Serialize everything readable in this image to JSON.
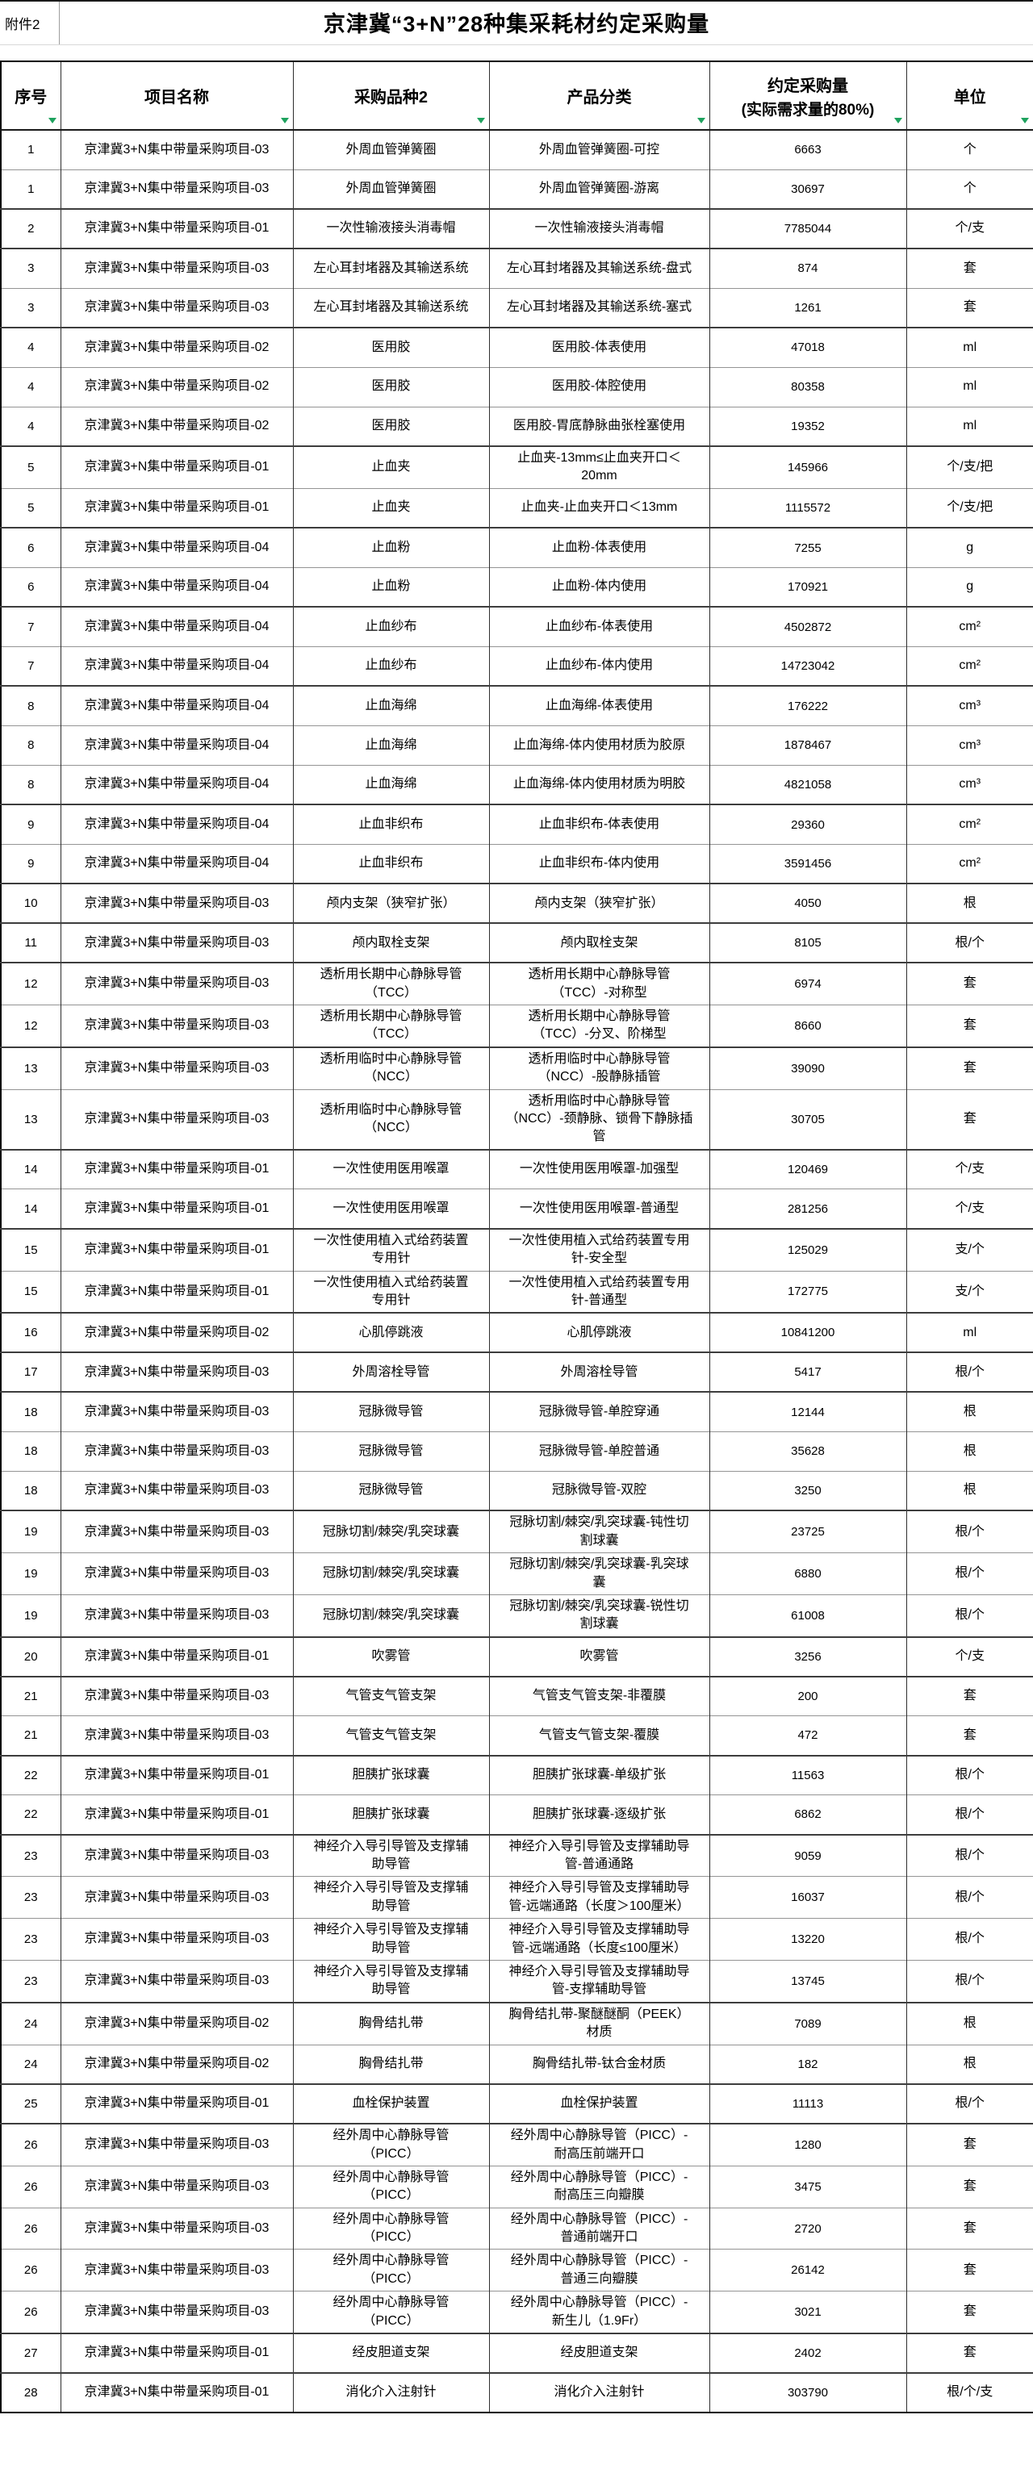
{
  "attachment": "附件2",
  "title": "京津冀“3+N”28种集采耗材约定采购量",
  "header": {
    "seq": "序号",
    "project": "项目名称",
    "variety": "采购品种2",
    "category": "产品分类",
    "qty_line1": "约定采购量",
    "qty_line2": "(实际需求量的80%)",
    "unit": "单位"
  },
  "colors": {
    "filter_green": "#1ea25e",
    "grid_dark": "#2e2e2e",
    "grid_light": "#949494"
  },
  "rows": [
    {
      "seq": "1",
      "project": "京津冀3+N集中带量采购项目-03",
      "variety": "外周血管弹簧圈",
      "category": "外周血管弹簧圈-可控",
      "qty": "6663",
      "unit": "个"
    },
    {
      "seq": "1",
      "project": "京津冀3+N集中带量采购项目-03",
      "variety": "外周血管弹簧圈",
      "category": "外周血管弹簧圈-游离",
      "qty": "30697",
      "unit": "个"
    },
    {
      "seq": "2",
      "project": "京津冀3+N集中带量采购项目-01",
      "variety": "一次性输液接头消毒帽",
      "category": "一次性输液接头消毒帽",
      "qty": "7785044",
      "unit": "个/支"
    },
    {
      "seq": "3",
      "project": "京津冀3+N集中带量采购项目-03",
      "variety": "左心耳封堵器及其输送系统",
      "category": "左心耳封堵器及其输送系统-盘式",
      "qty": "874",
      "unit": "套"
    },
    {
      "seq": "3",
      "project": "京津冀3+N集中带量采购项目-03",
      "variety": "左心耳封堵器及其输送系统",
      "category": "左心耳封堵器及其输送系统-塞式",
      "qty": "1261",
      "unit": "套"
    },
    {
      "seq": "4",
      "project": "京津冀3+N集中带量采购项目-02",
      "variety": "医用胶",
      "category": "医用胶-体表使用",
      "qty": "47018",
      "unit": "ml"
    },
    {
      "seq": "4",
      "project": "京津冀3+N集中带量采购项目-02",
      "variety": "医用胶",
      "category": "医用胶-体腔使用",
      "qty": "80358",
      "unit": "ml"
    },
    {
      "seq": "4",
      "project": "京津冀3+N集中带量采购项目-02",
      "variety": "医用胶",
      "category": "医用胶-胃底静脉曲张栓塞使用",
      "qty": "19352",
      "unit": "ml"
    },
    {
      "seq": "5",
      "project": "京津冀3+N集中带量采购项目-01",
      "variety": "止血夹",
      "category": "止血夹-13mm≤止血夹开口＜20mm",
      "qty": "145966",
      "unit": "个/支/把"
    },
    {
      "seq": "5",
      "project": "京津冀3+N集中带量采购项目-01",
      "variety": "止血夹",
      "category": "止血夹-止血夹开口＜13mm",
      "qty": "1115572",
      "unit": "个/支/把"
    },
    {
      "seq": "6",
      "project": "京津冀3+N集中带量采购项目-04",
      "variety": "止血粉",
      "category": "止血粉-体表使用",
      "qty": "7255",
      "unit": "g"
    },
    {
      "seq": "6",
      "project": "京津冀3+N集中带量采购项目-04",
      "variety": "止血粉",
      "category": "止血粉-体内使用",
      "qty": "170921",
      "unit": "g"
    },
    {
      "seq": "7",
      "project": "京津冀3+N集中带量采购项目-04",
      "variety": "止血纱布",
      "category": "止血纱布-体表使用",
      "qty": "4502872",
      "unit": "cm²"
    },
    {
      "seq": "7",
      "project": "京津冀3+N集中带量采购项目-04",
      "variety": "止血纱布",
      "category": "止血纱布-体内使用",
      "qty": "14723042",
      "unit": "cm²"
    },
    {
      "seq": "8",
      "project": "京津冀3+N集中带量采购项目-04",
      "variety": "止血海绵",
      "category": "止血海绵-体表使用",
      "qty": "176222",
      "unit": "cm³"
    },
    {
      "seq": "8",
      "project": "京津冀3+N集中带量采购项目-04",
      "variety": "止血海绵",
      "category": "止血海绵-体内使用材质为胶原",
      "qty": "1878467",
      "unit": "cm³"
    },
    {
      "seq": "8",
      "project": "京津冀3+N集中带量采购项目-04",
      "variety": "止血海绵",
      "category": "止血海绵-体内使用材质为明胶",
      "qty": "4821058",
      "unit": "cm³"
    },
    {
      "seq": "9",
      "project": "京津冀3+N集中带量采购项目-04",
      "variety": "止血非织布",
      "category": "止血非织布-体表使用",
      "qty": "29360",
      "unit": "cm²"
    },
    {
      "seq": "9",
      "project": "京津冀3+N集中带量采购项目-04",
      "variety": "止血非织布",
      "category": "止血非织布-体内使用",
      "qty": "3591456",
      "unit": "cm²"
    },
    {
      "seq": "10",
      "project": "京津冀3+N集中带量采购项目-03",
      "variety": "颅内支架（狭窄扩张）",
      "category": "颅内支架（狭窄扩张）",
      "qty": "4050",
      "unit": "根"
    },
    {
      "seq": "11",
      "project": "京津冀3+N集中带量采购项目-03",
      "variety": "颅内取栓支架",
      "category": "颅内取栓支架",
      "qty": "8105",
      "unit": "根/个"
    },
    {
      "seq": "12",
      "project": "京津冀3+N集中带量采购项目-03",
      "variety": "透析用长期中心静脉导管（TCC）",
      "category": "透析用长期中心静脉导管（TCC）-对称型",
      "qty": "6974",
      "unit": "套"
    },
    {
      "seq": "12",
      "project": "京津冀3+N集中带量采购项目-03",
      "variety": "透析用长期中心静脉导管（TCC）",
      "category": "透析用长期中心静脉导管（TCC）-分叉、阶梯型",
      "qty": "8660",
      "unit": "套"
    },
    {
      "seq": "13",
      "project": "京津冀3+N集中带量采购项目-03",
      "variety": "透析用临时中心静脉导管（NCC）",
      "category": "透析用临时中心静脉导管（NCC）-股静脉插管",
      "qty": "39090",
      "unit": "套"
    },
    {
      "seq": "13",
      "project": "京津冀3+N集中带量采购项目-03",
      "variety": "透析用临时中心静脉导管（NCC）",
      "category": "透析用临时中心静脉导管（NCC）-颈静脉、锁骨下静脉插管",
      "qty": "30705",
      "unit": "套"
    },
    {
      "seq": "14",
      "project": "京津冀3+N集中带量采购项目-01",
      "variety": "一次性使用医用喉罩",
      "category": "一次性使用医用喉罩-加强型",
      "qty": "120469",
      "unit": "个/支"
    },
    {
      "seq": "14",
      "project": "京津冀3+N集中带量采购项目-01",
      "variety": "一次性使用医用喉罩",
      "category": "一次性使用医用喉罩-普通型",
      "qty": "281256",
      "unit": "个/支"
    },
    {
      "seq": "15",
      "project": "京津冀3+N集中带量采购项目-01",
      "variety": "一次性使用植入式给药装置专用针",
      "category": "一次性使用植入式给药装置专用针-安全型",
      "qty": "125029",
      "unit": "支/个"
    },
    {
      "seq": "15",
      "project": "京津冀3+N集中带量采购项目-01",
      "variety": "一次性使用植入式给药装置专用针",
      "category": "一次性使用植入式给药装置专用针-普通型",
      "qty": "172775",
      "unit": "支/个"
    },
    {
      "seq": "16",
      "project": "京津冀3+N集中带量采购项目-02",
      "variety": "心肌停跳液",
      "category": "心肌停跳液",
      "qty": "10841200",
      "unit": "ml"
    },
    {
      "seq": "17",
      "project": "京津冀3+N集中带量采购项目-03",
      "variety": "外周溶栓导管",
      "category": "外周溶栓导管",
      "qty": "5417",
      "unit": "根/个"
    },
    {
      "seq": "18",
      "project": "京津冀3+N集中带量采购项目-03",
      "variety": "冠脉微导管",
      "category": "冠脉微导管-单腔穿通",
      "qty": "12144",
      "unit": "根"
    },
    {
      "seq": "18",
      "project": "京津冀3+N集中带量采购项目-03",
      "variety": "冠脉微导管",
      "category": "冠脉微导管-单腔普通",
      "qty": "35628",
      "unit": "根"
    },
    {
      "seq": "18",
      "project": "京津冀3+N集中带量采购项目-03",
      "variety": "冠脉微导管",
      "category": "冠脉微导管-双腔",
      "qty": "3250",
      "unit": "根"
    },
    {
      "seq": "19",
      "project": "京津冀3+N集中带量采购项目-03",
      "variety": "冠脉切割/棘突/乳突球囊",
      "category": "冠脉切割/棘突/乳突球囊-钝性切割球囊",
      "qty": "23725",
      "unit": "根/个"
    },
    {
      "seq": "19",
      "project": "京津冀3+N集中带量采购项目-03",
      "variety": "冠脉切割/棘突/乳突球囊",
      "category": "冠脉切割/棘突/乳突球囊-乳突球囊",
      "qty": "6880",
      "unit": "根/个"
    },
    {
      "seq": "19",
      "project": "京津冀3+N集中带量采购项目-03",
      "variety": "冠脉切割/棘突/乳突球囊",
      "category": "冠脉切割/棘突/乳突球囊-锐性切割球囊",
      "qty": "61008",
      "unit": "根/个"
    },
    {
      "seq": "20",
      "project": "京津冀3+N集中带量采购项目-01",
      "variety": "吹雾管",
      "category": "吹雾管",
      "qty": "3256",
      "unit": "个/支"
    },
    {
      "seq": "21",
      "project": "京津冀3+N集中带量采购项目-03",
      "variety": "气管支气管支架",
      "category": "气管支气管支架-非覆膜",
      "qty": "200",
      "unit": "套"
    },
    {
      "seq": "21",
      "project": "京津冀3+N集中带量采购项目-03",
      "variety": "气管支气管支架",
      "category": "气管支气管支架-覆膜",
      "qty": "472",
      "unit": "套"
    },
    {
      "seq": "22",
      "project": "京津冀3+N集中带量采购项目-01",
      "variety": "胆胰扩张球囊",
      "category": "胆胰扩张球囊-单级扩张",
      "qty": "11563",
      "unit": "根/个"
    },
    {
      "seq": "22",
      "project": "京津冀3+N集中带量采购项目-01",
      "variety": "胆胰扩张球囊",
      "category": "胆胰扩张球囊-逐级扩张",
      "qty": "6862",
      "unit": "根/个"
    },
    {
      "seq": "23",
      "project": "京津冀3+N集中带量采购项目-03",
      "variety": "神经介入导引导管及支撑辅助导管",
      "category": "神经介入导引导管及支撑辅助导管-普通通路",
      "qty": "9059",
      "unit": "根/个"
    },
    {
      "seq": "23",
      "project": "京津冀3+N集中带量采购项目-03",
      "variety": "神经介入导引导管及支撑辅助导管",
      "category": "神经介入导引导管及支撑辅助导管-远端通路（长度＞100厘米）",
      "qty": "16037",
      "unit": "根/个"
    },
    {
      "seq": "23",
      "project": "京津冀3+N集中带量采购项目-03",
      "variety": "神经介入导引导管及支撑辅助导管",
      "category": "神经介入导引导管及支撑辅助导管-远端通路（长度≤100厘米）",
      "qty": "13220",
      "unit": "根/个"
    },
    {
      "seq": "23",
      "project": "京津冀3+N集中带量采购项目-03",
      "variety": "神经介入导引导管及支撑辅助导管",
      "category": "神经介入导引导管及支撑辅助导管-支撑辅助导管",
      "qty": "13745",
      "unit": "根/个"
    },
    {
      "seq": "24",
      "project": "京津冀3+N集中带量采购项目-02",
      "variety": "胸骨结扎带",
      "category": "胸骨结扎带-聚醚醚酮（PEEK）材质",
      "qty": "7089",
      "unit": "根"
    },
    {
      "seq": "24",
      "project": "京津冀3+N集中带量采购项目-02",
      "variety": "胸骨结扎带",
      "category": "胸骨结扎带-钛合金材质",
      "qty": "182",
      "unit": "根"
    },
    {
      "seq": "25",
      "project": "京津冀3+N集中带量采购项目-01",
      "variety": "血栓保护装置",
      "category": "血栓保护装置",
      "qty": "11113",
      "unit": "根/个"
    },
    {
      "seq": "26",
      "project": "京津冀3+N集中带量采购项目-03",
      "variety": "经外周中心静脉导管（PICC）",
      "category": "经外周中心静脉导管（PICC）-耐高压前端开口",
      "qty": "1280",
      "unit": "套"
    },
    {
      "seq": "26",
      "project": "京津冀3+N集中带量采购项目-03",
      "variety": "经外周中心静脉导管（PICC）",
      "category": "经外周中心静脉导管（PICC）-耐高压三向瓣膜",
      "qty": "3475",
      "unit": "套"
    },
    {
      "seq": "26",
      "project": "京津冀3+N集中带量采购项目-03",
      "variety": "经外周中心静脉导管（PICC）",
      "category": "经外周中心静脉导管（PICC）-普通前端开口",
      "qty": "2720",
      "unit": "套"
    },
    {
      "seq": "26",
      "project": "京津冀3+N集中带量采购项目-03",
      "variety": "经外周中心静脉导管（PICC）",
      "category": "经外周中心静脉导管（PICC）-普通三向瓣膜",
      "qty": "26142",
      "unit": "套"
    },
    {
      "seq": "26",
      "project": "京津冀3+N集中带量采购项目-03",
      "variety": "经外周中心静脉导管（PICC）",
      "category": "经外周中心静脉导管（PICC）-新生儿（1.9Fr）",
      "qty": "3021",
      "unit": "套"
    },
    {
      "seq": "27",
      "project": "京津冀3+N集中带量采购项目-01",
      "variety": "经皮胆道支架",
      "category": "经皮胆道支架",
      "qty": "2402",
      "unit": "套"
    },
    {
      "seq": "28",
      "project": "京津冀3+N集中带量采购项目-01",
      "variety": "消化介入注射针",
      "category": "消化介入注射针",
      "qty": "303790",
      "unit": "根/个/支"
    }
  ]
}
